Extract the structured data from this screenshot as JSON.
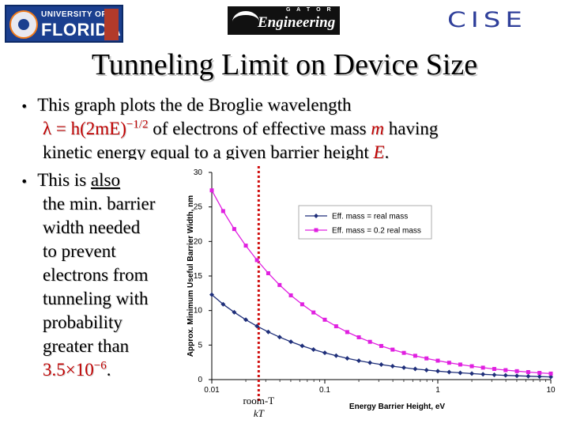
{
  "logos": {
    "uf": {
      "line1": "UNIVERSITY OF",
      "line2": "FLORIDA",
      "icon": "uf-seal-icon",
      "accent": "#f07a1a",
      "bg": "#1b3f8f"
    },
    "engineering": {
      "top": "G A T O R",
      "text": "Engineering",
      "icon": "gator-engineering-icon"
    },
    "cise": {
      "text": "CISE",
      "color": "#2f3f9a"
    }
  },
  "title": "Tunneling Limit on Device Size",
  "bullets": [
    {
      "line1": "This graph plots the de Broglie wavelength",
      "formula": "λ = h(2mE)",
      "formula_exp": "−1/2",
      "line2_mid": " of electrons of effective mass ",
      "m": "m",
      "line2_end": " having",
      "line3_start": "kinetic energy equal to a given barrier height ",
      "E": "E",
      "line3_end": "."
    },
    {
      "lines": [
        "This is ",
        "the min. barrier",
        "width needed",
        "to prevent",
        "electrons from",
        "tunneling with",
        "probability",
        "greater than"
      ],
      "also": "also",
      "prob_value": "3.5×10",
      "prob_exp": "−6",
      "prob_end": "."
    }
  ],
  "chart_data": {
    "type": "line",
    "x_scale": "log",
    "xlim": [
      0.01,
      10
    ],
    "ylim": [
      0,
      30
    ],
    "x_ticks": [
      "0.01",
      "0.1",
      "1",
      "10"
    ],
    "y_ticks": [
      "0",
      "5",
      "10",
      "15",
      "20",
      "25",
      "30"
    ],
    "xlabel": "Energy Barrier Height, eV",
    "ylabel": "Approx. Minimum Useful Barrier Width, nm",
    "legend_position": "top-right",
    "marker_line": {
      "x": 0.026,
      "label": "room-T",
      "sublabel": "kT"
    },
    "series": [
      {
        "name": "Eff. mass = real mass",
        "color": "#1f2f7a",
        "x": [
          0.01,
          0.0126,
          0.0158,
          0.02,
          0.0251,
          0.0316,
          0.0398,
          0.0501,
          0.0631,
          0.0794,
          0.1,
          0.126,
          0.158,
          0.2,
          0.251,
          0.316,
          0.398,
          0.501,
          0.631,
          0.794,
          1,
          1.26,
          1.58,
          2,
          2.51,
          3.16,
          3.98,
          5.01,
          6.31,
          7.94,
          10
        ],
        "y": [
          12.3,
          10.9,
          9.75,
          8.67,
          7.74,
          6.9,
          6.15,
          5.48,
          4.88,
          4.35,
          3.88,
          3.46,
          3.08,
          2.74,
          2.45,
          2.18,
          1.94,
          1.73,
          1.54,
          1.38,
          1.23,
          1.09,
          0.98,
          0.87,
          0.77,
          0.69,
          0.61,
          0.55,
          0.49,
          0.44,
          0.39
        ]
      },
      {
        "name": "Eff. mass = 0.2 real mass",
        "color": "#e020e0",
        "x": [
          0.01,
          0.0126,
          0.0158,
          0.02,
          0.0251,
          0.0316,
          0.0398,
          0.0501,
          0.0631,
          0.0794,
          0.1,
          0.126,
          0.158,
          0.2,
          0.251,
          0.316,
          0.398,
          0.501,
          0.631,
          0.794,
          1,
          1.26,
          1.58,
          2,
          2.51,
          3.16,
          3.98,
          5.01,
          6.31,
          7.94,
          10
        ],
        "y": [
          27.4,
          24.4,
          21.8,
          19.4,
          17.3,
          15.4,
          13.7,
          12.2,
          10.9,
          9.72,
          8.67,
          7.72,
          6.88,
          6.13,
          5.47,
          4.87,
          4.34,
          3.87,
          3.45,
          3.07,
          2.74,
          2.44,
          2.18,
          1.94,
          1.73,
          1.54,
          1.37,
          1.22,
          1.09,
          0.97,
          0.87
        ]
      }
    ]
  }
}
